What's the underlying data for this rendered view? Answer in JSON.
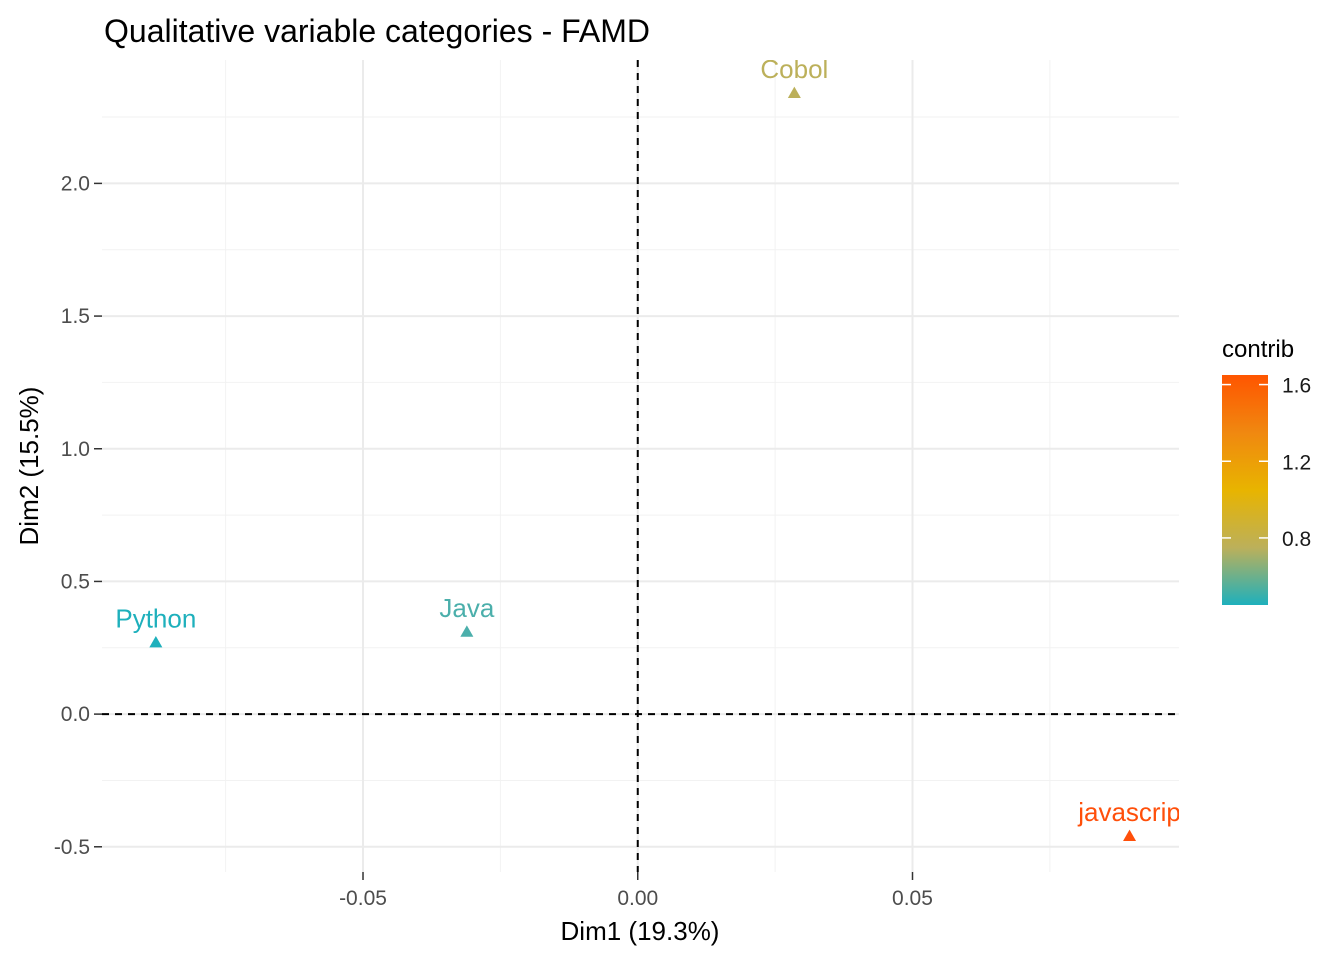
{
  "chart_data": {
    "type": "scatter",
    "title": "Qualitative variable categories - FAMD",
    "xlabel": "Dim1 (19.3%)",
    "ylabel": "Dim2 (15.5%)",
    "xlim": [
      -0.0975,
      0.0985
    ],
    "ylim": [
      -0.595,
      2.465
    ],
    "x_ticks": [
      -0.05,
      0.0,
      0.05
    ],
    "x_tick_labels": [
      "-0.05",
      "0.00",
      "0.05"
    ],
    "x_minor_ticks": [
      -0.075,
      -0.025,
      0.025,
      0.075
    ],
    "y_ticks": [
      -0.5,
      0.0,
      0.5,
      1.0,
      1.5,
      2.0
    ],
    "y_tick_labels": [
      "-0.5",
      "0.0",
      "0.5",
      "1.0",
      "1.5",
      "2.0"
    ],
    "y_minor_ticks": [
      -0.25,
      0.25,
      0.75,
      1.25,
      1.75,
      2.25
    ],
    "grid": true,
    "reference_lines": {
      "x": 0,
      "y": 0,
      "style": "dashed"
    },
    "points": [
      {
        "label": "Python",
        "x": -0.0877,
        "y": 0.27,
        "contrib": 0.45,
        "color": "#1eb0bc"
      },
      {
        "label": "Java",
        "x": -0.0311,
        "y": 0.31,
        "contrib": 0.55,
        "color": "#4bafab"
      },
      {
        "label": "Cobol",
        "x": 0.0285,
        "y": 2.34,
        "contrib": 0.85,
        "color": "#bcb05a"
      },
      {
        "label": "javascrip",
        "x": 0.0895,
        "y": -0.46,
        "contrib": 1.62,
        "color": "#ff4f0a"
      }
    ],
    "marker": "triangle",
    "legend": {
      "title": "contrib",
      "placement": "right",
      "range": [
        0.45,
        1.65
      ],
      "ticks": [
        0.8,
        1.2,
        1.6
      ],
      "tick_labels": [
        "0.8",
        "1.2",
        "1.6"
      ],
      "gradient": [
        "#1eb0bc",
        "#bcb05a",
        "#e8b400",
        "#f08810",
        "#ff5500"
      ]
    }
  }
}
